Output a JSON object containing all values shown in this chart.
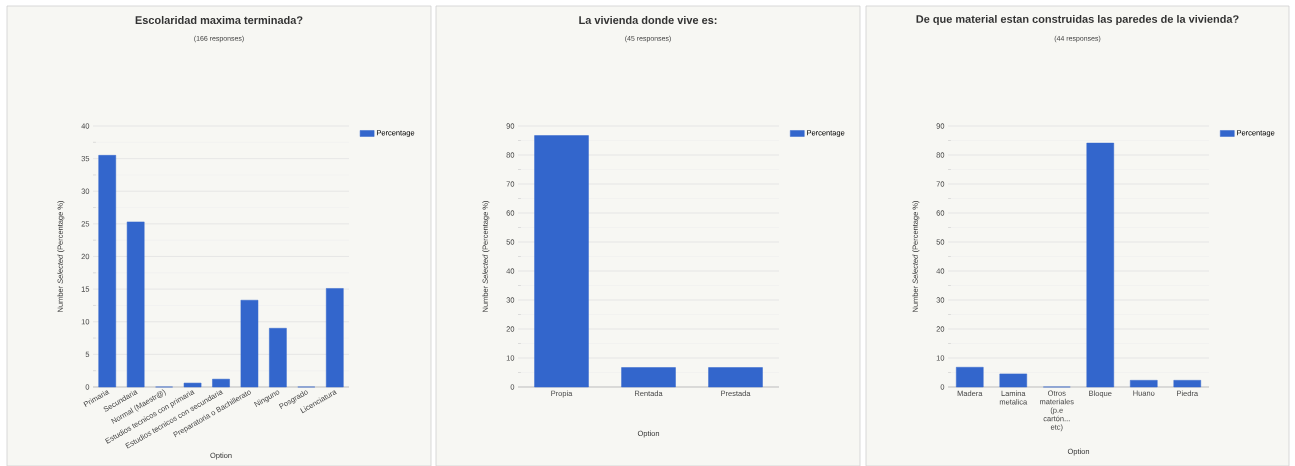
{
  "chart_data": [
    {
      "type": "bar",
      "title": "Escolaridad maxima terminada?",
      "subtitle": "(166 responses)",
      "xlabel": "Option",
      "ylabel": "Number *Selected* (Percentage %)",
      "categories": [
        "Primaria",
        "Secundaria",
        "Normal (Maestr@)",
        "Estudios tecnicos con primaria",
        "Estudios tecnicos con secundaria",
        "Preparatoria o Bachillerato",
        "Ninguno",
        "Posgrado",
        "Licenciatura"
      ],
      "series": [
        {
          "name": "Percentage",
          "color": "#3366cc",
          "values": [
            35.5,
            25.3,
            0,
            0.6,
            1.2,
            13.3,
            9,
            0,
            15.1
          ]
        }
      ],
      "ylim": [
        0,
        40
      ],
      "yticks": [
        0,
        5,
        10,
        15,
        20,
        25,
        30,
        35,
        40
      ],
      "grid": "y",
      "legend": "top right"
    },
    {
      "type": "bar",
      "title": "La vivienda donde vive es:",
      "subtitle": "(45 responses)",
      "xlabel": "Option",
      "ylabel": "Number *Selected* (Percentage %)",
      "categories": [
        "Propia",
        "Rentada",
        "Prestada"
      ],
      "series": [
        {
          "name": "Percentage",
          "color": "#3366cc",
          "values": [
            86.7,
            6.7,
            6.7
          ]
        }
      ],
      "ylim": [
        0,
        90
      ],
      "yticks": [
        0,
        10,
        20,
        30,
        40,
        50,
        60,
        70,
        80,
        90
      ],
      "grid": "y",
      "legend": "top right"
    },
    {
      "type": "bar",
      "title": "De que material estan construidas las paredes de la vivienda?",
      "subtitle": "(44 responses)",
      "xlabel": "Option",
      "ylabel": "Number *Selected* (Percentage %)",
      "categories": [
        "Madera",
        "Lamina metalica",
        "Otros materiales (p.e cartón... etc)",
        "Bloque",
        "Huano",
        "Piedra"
      ],
      "series": [
        {
          "name": "Percentage",
          "color": "#3366cc",
          "values": [
            6.8,
            4.5,
            0,
            84.1,
            2.3,
            2.3
          ]
        }
      ],
      "ylim": [
        0,
        90
      ],
      "yticks": [
        0,
        10,
        20,
        30,
        40,
        50,
        60,
        70,
        80,
        90
      ],
      "grid": "y",
      "legend": "top right"
    }
  ]
}
